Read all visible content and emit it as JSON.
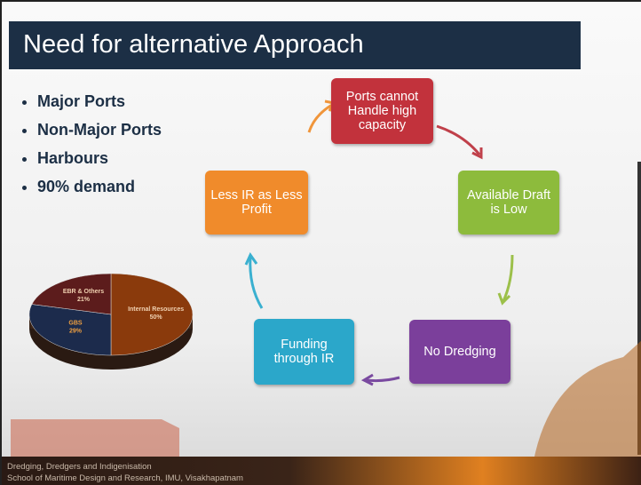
{
  "header": {
    "title": "Need for alternative Approach"
  },
  "bullets": [
    "Major Ports",
    "Non-Major Ports",
    "Harbours",
    "90% demand"
  ],
  "cycle": {
    "nodes": [
      {
        "label": "Ports cannot Handle high capacity"
      },
      {
        "label": "Available Draft is Low"
      },
      {
        "label": "No Dredging"
      },
      {
        "label": "Funding through IR"
      },
      {
        "label": "Less IR as Less Profit"
      }
    ]
  },
  "chart_data": {
    "type": "pie",
    "categories": [
      "Internal Resources",
      "GBS",
      "EBR & Others"
    ],
    "values": [
      50,
      29,
      21
    ],
    "value_labels": [
      "50%",
      "29%",
      "21%"
    ],
    "colors": [
      "#8a3a0c",
      "#1c2b4c",
      "#5c1c1c"
    ]
  },
  "footer": {
    "line1": "Dredging, Dredgers and Indigenisation",
    "line2": "School of Maritime Design and Research, IMU, Visakhapatnam"
  }
}
